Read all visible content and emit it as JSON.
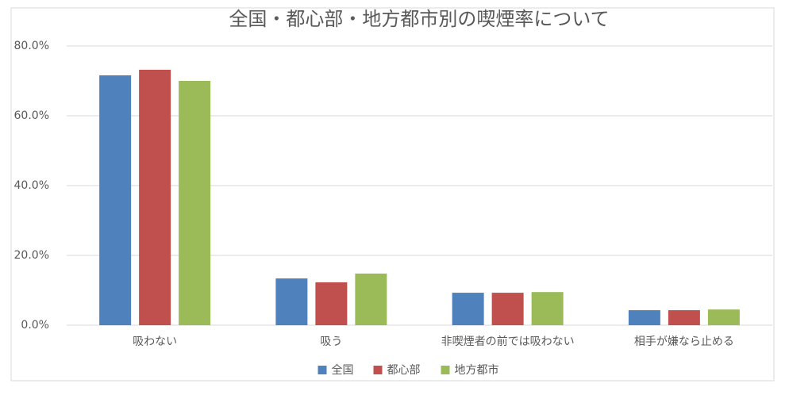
{
  "chart_data": {
    "type": "bar",
    "title": "全国・都心部・地方都市別の喫煙率について",
    "categories": [
      "吸わない",
      "吸う",
      "非喫煙者の前では吸わない",
      "相手が嫌なら止める"
    ],
    "series": [
      {
        "name": "全国",
        "color": "#4f81bd",
        "values": [
          71.6,
          13.4,
          9.3,
          4.3
        ]
      },
      {
        "name": "都心部",
        "color": "#c0504d",
        "values": [
          73.2,
          12.3,
          9.3,
          4.3
        ]
      },
      {
        "name": "地方都市",
        "color": "#9bbb59",
        "values": [
          70.0,
          14.8,
          9.5,
          4.5
        ]
      }
    ],
    "ylim": [
      0,
      80
    ],
    "yticks": [
      {
        "value": 0,
        "label": "0.0%"
      },
      {
        "value": 20,
        "label": "20.0%"
      },
      {
        "value": 40,
        "label": "40.0%"
      },
      {
        "value": 60,
        "label": "60.0%"
      },
      {
        "value": 80,
        "label": "80.0%"
      }
    ],
    "grid": true,
    "legend": "bottom"
  }
}
